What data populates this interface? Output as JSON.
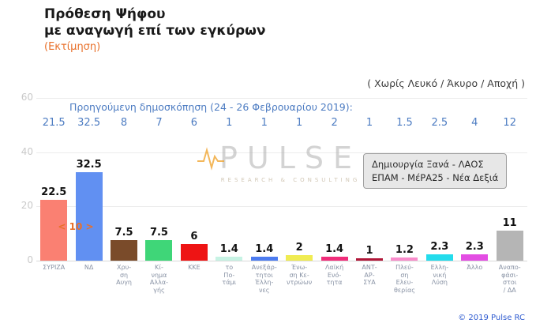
{
  "header": {
    "title": "Πρόθεση Ψήφου\nμε αναγωγή επί των εγκύρων",
    "subtitle": "(Εκτίμηση)",
    "exclusion_note": "( Χωρίς Λευκό / Άκυρο / Αποχή )"
  },
  "previous_poll": {
    "label": "Προηγούμενη δημοσκόπηση (24 - 26 Φεβρουαρίου 2019):"
  },
  "annotation": {
    "line1": "Δημιουργία Ξανά - ΛΑΟΣ",
    "line2": "ΕΠΑΜ - ΜέΡΑ25 - Νέα Δεξιά"
  },
  "watermark": {
    "text": "PULSE",
    "subtext": "RESEARCH & CONSULTING"
  },
  "gap_label": "< 10 >",
  "copyright": "© 2019 Pulse RC",
  "chart_data": {
    "type": "bar",
    "title": "Πρόθεση Ψήφου με αναγωγή επί των εγκύρων (Εκτίμηση)",
    "xlabel": "",
    "ylabel": "",
    "ylim": [
      0,
      60
    ],
    "yticks": [
      0,
      20,
      40,
      60
    ],
    "grid": true,
    "legend": "none",
    "categories": [
      "ΣΥΡΙΖΑ",
      "ΝΔ",
      "Χρυσή Αυγή",
      "Κίνημα Αλλαγής",
      "ΚΚΕ",
      "Το Ποτάμι",
      "Ανεξάρτητοι Έλληνες",
      "Ένωση Κεντρώων",
      "Λαϊκή Ενότητα",
      "ΑΝΤΑΡΣΥΑ",
      "Πλεύση Ελευθερίας",
      "Ελληνική Λύση",
      "Άλλο",
      "Αναποφάσιστοι / ΔΑ"
    ],
    "category_display": [
      "ΣΥΡΙΖΑ",
      "ΝΔ",
      "Χρυ-\nση\nΑυγη",
      "Κί-\nνημα\nΑλλα-\nγής",
      "ΚΚΕ",
      "το\nΠο-\nτάμι",
      "Ανεξάρ-\nτητοι\nΈλλη-\nνες",
      "Ένω-\nση Κε-\nντρώων",
      "Λαϊκή\nΕνό-\nτητα",
      "ΑΝΤ-\nΑΡ-\nΣΥΑ",
      "Πλεύ-\nση\nΕλευ-\nθερίας",
      "Ελλη-\nνική\nΛύση",
      "Άλλο",
      "Αναπο-\nφάσι-\nστοι\n/ ΔΑ"
    ],
    "values": [
      22.5,
      32.5,
      7.5,
      7.5,
      6,
      1.4,
      1.4,
      2,
      1.4,
      1,
      1.2,
      2.3,
      2.3,
      11
    ],
    "value_labels": [
      "22.5",
      "32.5",
      "7.5",
      "7.5",
      "6",
      "1.4",
      "1.4",
      "2",
      "1.4",
      "1",
      "1.2",
      "2.3",
      "2.3",
      "11"
    ],
    "previous_values": [
      "21.5",
      "32.5",
      "8",
      "7",
      "6",
      "1",
      "1",
      "1",
      "2",
      "1",
      "1.5",
      "2.5",
      "4",
      "12"
    ],
    "colors": [
      "#fa8072",
      "#6190f2",
      "#7a4b2a",
      "#3fd678",
      "#ee1414",
      "#c7f3e4",
      "#4d7cf0",
      "#f0ec52",
      "#f02d7a",
      "#b01638",
      "#f98ccb",
      "#23dcec",
      "#e34de3",
      "#b5b5b5"
    ]
  }
}
